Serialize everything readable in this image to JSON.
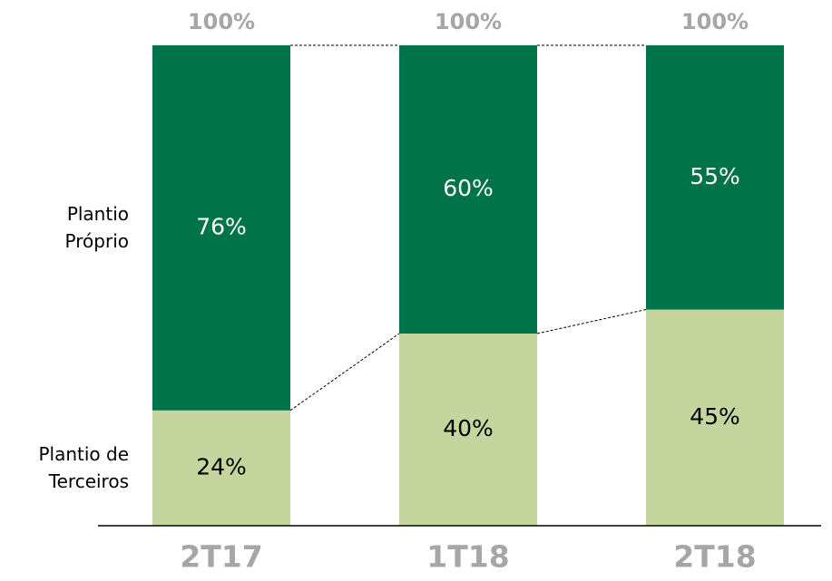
{
  "chart_data": {
    "type": "stacked_bar",
    "categories": [
      "2T17",
      "1T18",
      "2T18"
    ],
    "series": [
      {
        "name": "Plantio de Terceiros",
        "color": "#c4d69d",
        "values": [
          24,
          40,
          45
        ],
        "value_labels": [
          "24%",
          "40%",
          "45%"
        ]
      },
      {
        "name": "Plantio Próprio",
        "color": "#00734b",
        "values": [
          76,
          60,
          55
        ],
        "value_labels": [
          "76%",
          "60%",
          "55%"
        ]
      }
    ],
    "totals": [
      100,
      100,
      100
    ],
    "total_labels": [
      "100%",
      "100%",
      "100%"
    ],
    "ylim": [
      0,
      100
    ]
  }
}
